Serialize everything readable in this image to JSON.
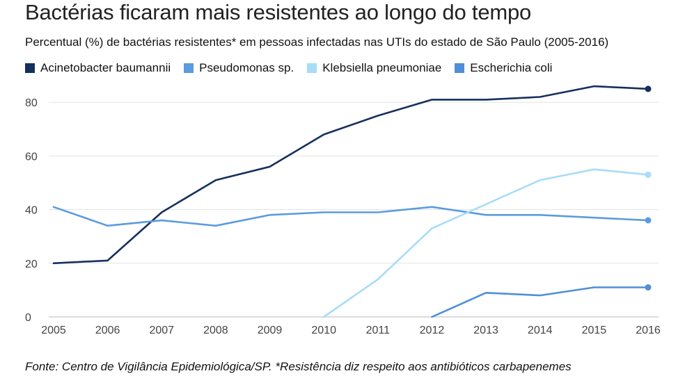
{
  "chart_data": {
    "type": "line",
    "title": "Bactérias ficaram mais resistentes ao longo do tempo",
    "subtitle": "Percentual (%) de bactérias resistentes* em pessoas infectadas nas UTIs do estado de São Paulo (2005-2016)",
    "source": "Fonte: Centro de Vigilância Epidemiológica/SP. *Resistência diz respeito aos antibióticos carbapenemes",
    "x": [
      2005,
      2006,
      2007,
      2008,
      2009,
      2010,
      2011,
      2012,
      2013,
      2014,
      2015,
      2016
    ],
    "x_tick_labels": [
      "2005",
      "2006",
      "2007",
      "2008",
      "2009",
      "2010",
      "2011",
      "2012",
      "2013",
      "2014",
      "2015",
      "2016"
    ],
    "y_ticks": [
      0,
      20,
      40,
      60,
      80
    ],
    "y_tick_labels": [
      "0",
      "20",
      "40",
      "60",
      "80"
    ],
    "ylim": [
      0,
      85.5
    ],
    "xlabel": "",
    "ylabel": "",
    "grid": true,
    "legend_position": "top-left",
    "series": [
      {
        "name": "Acinetobacter baumannii",
        "color": "#16305e",
        "values": [
          20,
          21,
          39,
          51,
          56,
          68,
          75,
          81,
          81,
          82,
          86,
          85
        ]
      },
      {
        "name": "Pseudomonas sp.",
        "color": "#5b9be0",
        "values": [
          41,
          34,
          36,
          34,
          38,
          39,
          39,
          41,
          38,
          38,
          37,
          36
        ]
      },
      {
        "name": "Klebsiella pneumoniae",
        "color": "#a8dcf8",
        "values": [
          null,
          null,
          null,
          null,
          null,
          0,
          14,
          33,
          42,
          51,
          55,
          53
        ]
      },
      {
        "name": "Escherichia coli",
        "color": "#4f8fd8",
        "values": [
          null,
          null,
          null,
          null,
          null,
          null,
          null,
          0,
          9,
          8,
          11,
          11
        ]
      }
    ]
  }
}
